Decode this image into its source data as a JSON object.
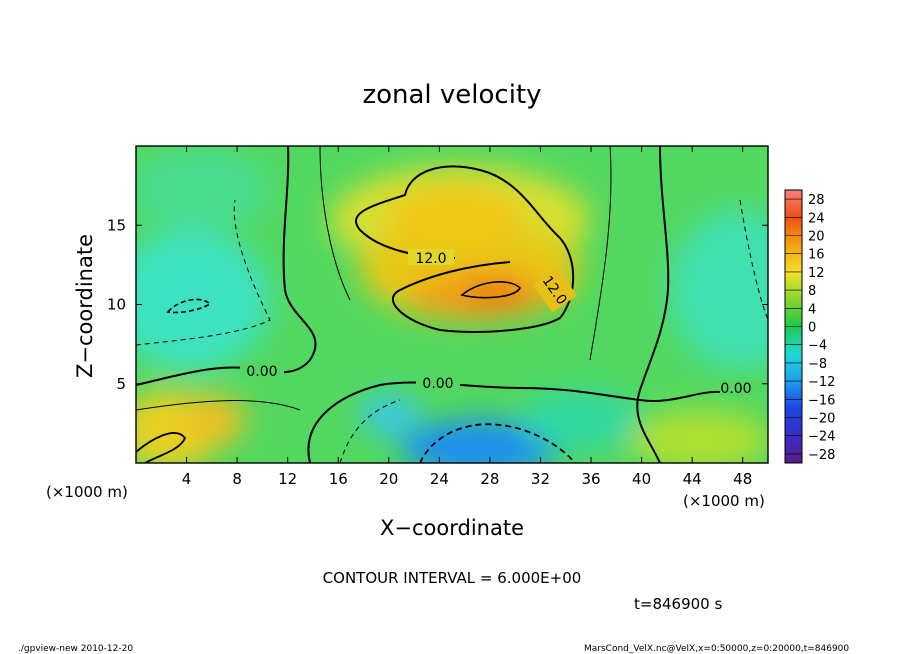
{
  "chart_data": {
    "type": "heatmap",
    "title": "zonal velocity",
    "xlabel": "X−coordinate",
    "ylabel": "Z−coordinate",
    "x_unit_left": "(×1000 m)",
    "x_unit_right": "(×1000 m)",
    "xlim": [
      0,
      50
    ],
    "ylim": [
      0,
      20
    ],
    "x_ticks": [
      "4",
      "8",
      "12",
      "16",
      "20",
      "24",
      "28",
      "32",
      "36",
      "40",
      "44",
      "48"
    ],
    "y_ticks": [
      "5",
      "10",
      "15"
    ],
    "colorbar_labels": [
      "28",
      "24",
      "20",
      "16",
      "12",
      "8",
      "4",
      "0",
      "−4",
      "−8",
      "−12",
      "−16",
      "−20",
      "−24",
      "−28"
    ],
    "colorbar_range": [
      -30,
      30
    ],
    "contour_labels": [
      "12.0",
      "12.0",
      "0.00",
      "0.00",
      "0.00"
    ],
    "contour_interval": "CONTOUR INTERVAL = 6.000E+00",
    "time_label": "t=846900 s",
    "colors": {
      "min": "#5a1a8a",
      "low": "#1a3cd8",
      "zero": "#1ec84c",
      "high": "#f4c220",
      "max": "#f46c6c"
    }
  },
  "footer": {
    "left": "./gpview-new  2010-12-20",
    "right": "MarsCond_VelX.nc@VelX,x=0:50000,z=0:20000,t=846900"
  }
}
